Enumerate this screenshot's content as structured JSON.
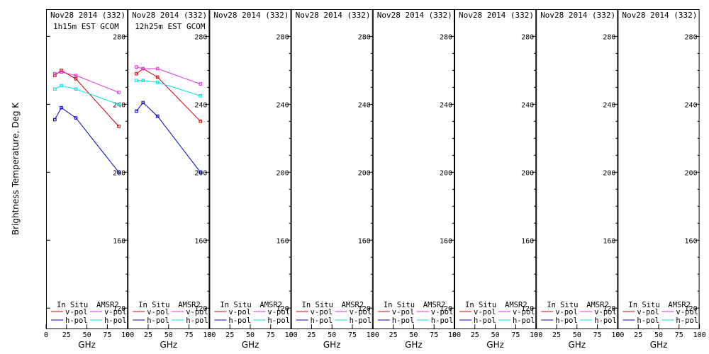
{
  "chart_data": {
    "type": "line",
    "ylabel": "Brightness Temperature, Deg K",
    "xlabel": "GHz",
    "xlim": [
      0,
      100
    ],
    "ylim": [
      108,
      296
    ],
    "xticks": [
      0,
      25,
      50,
      75,
      100
    ],
    "xtick_labels": [
      "0",
      "25",
      "50",
      "75",
      "100"
    ],
    "yticks": [
      120,
      160,
      200,
      240,
      280
    ],
    "ytick_labels": [
      "120",
      "160",
      "200",
      "240",
      "280"
    ],
    "legend": {
      "headers": [
        "In Situ",
        "AMSR2"
      ],
      "entries": [
        {
          "label": "v-pol",
          "group": "insitu",
          "color": "#d00000"
        },
        {
          "label": "h-pol",
          "group": "insitu",
          "color": "#0000c0"
        },
        {
          "label": "v-pol",
          "group": "amsr2",
          "color": "#e030e0"
        },
        {
          "label": "h-pol",
          "group": "amsr2",
          "color": "#00e0e0"
        }
      ]
    },
    "panels": [
      {
        "title": "Nov28 2014 (332)",
        "subtitle": "1h15m EST GCOM",
        "series": [
          {
            "name": "In Situ v-pol",
            "color": "#d00000",
            "x": [
              10.7,
              18.7,
              36.5,
              89.0
            ],
            "y": [
              257,
              260,
              255,
              227
            ]
          },
          {
            "name": "In Situ h-pol",
            "color": "#0000c0",
            "x": [
              10.7,
              18.7,
              36.5,
              89.0
            ],
            "y": [
              231,
              238,
              232,
              200
            ]
          },
          {
            "name": "AMSR2 v-pol",
            "color": "#e030e0",
            "x": [
              10.7,
              18.7,
              36.5,
              89.0
            ],
            "y": [
              258,
              259,
              257,
              247
            ]
          },
          {
            "name": "AMSR2 h-pol",
            "color": "#00e0e0",
            "x": [
              10.7,
              18.7,
              36.5,
              89.0
            ],
            "y": [
              249,
              251,
              249,
              240
            ]
          }
        ]
      },
      {
        "title": "Nov28 2014 (332)",
        "subtitle": "12h25m EST GCOM",
        "series": [
          {
            "name": "In Situ v-pol",
            "color": "#d00000",
            "x": [
              10.7,
              18.7,
              36.5,
              89.0
            ],
            "y": [
              258,
              261,
              256,
              230
            ]
          },
          {
            "name": "In Situ h-pol",
            "color": "#0000c0",
            "x": [
              10.7,
              18.7,
              36.5,
              89.0
            ],
            "y": [
              236,
              241,
              233,
              200
            ]
          },
          {
            "name": "AMSR2 v-pol",
            "color": "#e030e0",
            "x": [
              10.7,
              18.7,
              36.5,
              89.0
            ],
            "y": [
              262,
              261,
              261,
              252
            ]
          },
          {
            "name": "AMSR2 h-pol",
            "color": "#00e0e0",
            "x": [
              10.7,
              18.7,
              36.5,
              89.0
            ],
            "y": [
              254,
              254,
              253,
              245
            ]
          }
        ]
      },
      {
        "title": "Nov28 2014 (332)",
        "subtitle": "",
        "series": []
      },
      {
        "title": "Nov28 2014 (332)",
        "subtitle": "",
        "series": []
      },
      {
        "title": "Nov28 2014 (332)",
        "subtitle": "",
        "series": []
      },
      {
        "title": "Nov28 2014 (332)",
        "subtitle": "",
        "series": []
      },
      {
        "title": "Nov28 2014 (332)",
        "subtitle": "",
        "series": []
      },
      {
        "title": "Nov28 2014 (332)",
        "subtitle": "",
        "series": []
      }
    ]
  }
}
